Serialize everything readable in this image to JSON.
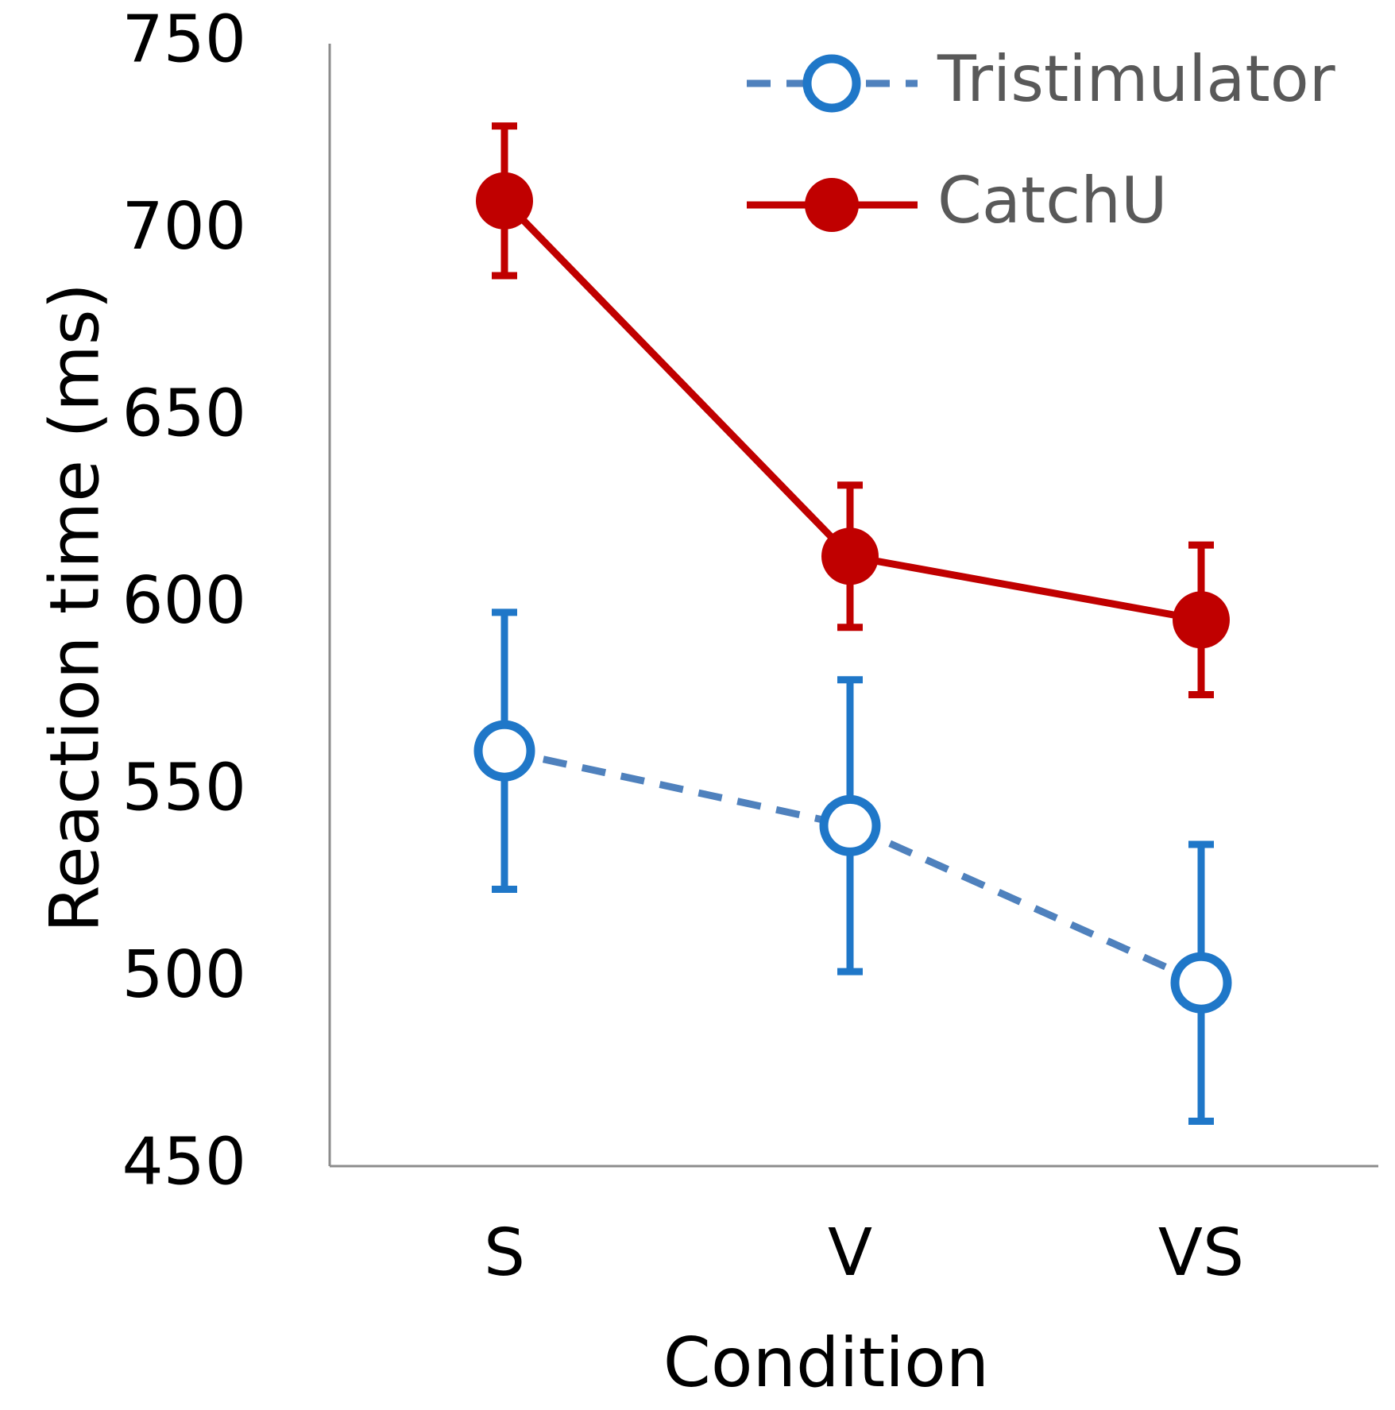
{
  "chart_data": {
    "type": "line",
    "title": "",
    "xlabel": "Condition",
    "ylabel": "Reaction time (ms)",
    "categories": [
      "S",
      "V",
      "VS"
    ],
    "ylim": [
      450,
      750
    ],
    "yticks": [
      450,
      500,
      550,
      600,
      650,
      700,
      750
    ],
    "grid": false,
    "legend_position": "top-right",
    "series": [
      {
        "name": "Tristimulator",
        "values": [
          561,
          541,
          499
        ],
        "error": [
          37,
          39,
          37
        ],
        "color": "#1f77c8",
        "line_color": "#4f81bd",
        "line_style": "dashed",
        "marker": "open-circle"
      },
      {
        "name": "CatchU",
        "values": [
          708,
          613,
          596
        ],
        "error": [
          20,
          19,
          20
        ],
        "color": "#c00000",
        "line_color": "#c00000",
        "line_style": "solid",
        "marker": "filled-circle"
      }
    ]
  }
}
